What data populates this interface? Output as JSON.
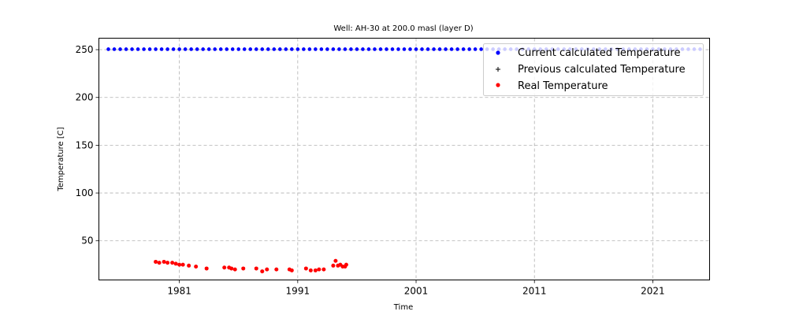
{
  "chart_data": {
    "type": "scatter",
    "title": "Well: AH-30 at 200.0 masl (layer D)",
    "xlabel": "Time",
    "ylabel": "Temperature [C]",
    "xlim": [
      1974.2,
      2025.8
    ],
    "ylim": [
      9,
      262
    ],
    "x_ticks": [
      1981,
      1991,
      2001,
      2011,
      2021
    ],
    "y_ticks": [
      50,
      100,
      150,
      200,
      250
    ],
    "grid": true,
    "legend_position": "top-right",
    "series": [
      {
        "name": "Current calculated Temperature",
        "color": "#0000ff",
        "marker": "dot",
        "x": [
          1975.0,
          1975.5,
          1976.0,
          1976.5,
          1977.0,
          1977.5,
          1978.0,
          1978.5,
          1979.0,
          1979.5,
          1980.0,
          1980.5,
          1981.0,
          1981.5,
          1982.0,
          1982.5,
          1983.0,
          1983.5,
          1984.0,
          1984.5,
          1985.0,
          1985.5,
          1986.0,
          1986.5,
          1987.0,
          1987.5,
          1988.0,
          1988.5,
          1989.0,
          1989.5,
          1990.0,
          1990.5,
          1991.0,
          1991.5,
          1992.0,
          1992.5,
          1993.0,
          1993.5,
          1994.0,
          1994.5,
          1995.0,
          1995.5,
          1996.0,
          1996.5,
          1997.0,
          1997.5,
          1998.0,
          1998.5,
          1999.0,
          1999.5,
          2000.0,
          2000.5,
          2001.0,
          2001.5,
          2002.0,
          2002.5,
          2003.0,
          2003.5,
          2004.0,
          2004.5,
          2005.0,
          2005.5,
          2006.0,
          2006.5,
          2007.0,
          2007.5,
          2008.0,
          2008.5,
          2009.0,
          2009.5,
          2010.0,
          2010.5,
          2011.0,
          2011.5,
          2012.0,
          2012.5,
          2013.0,
          2013.5,
          2014.0,
          2014.5,
          2015.0,
          2015.5,
          2016.0,
          2016.5,
          2017.0,
          2017.5,
          2018.0,
          2018.5,
          2019.0,
          2019.5,
          2020.0,
          2020.5,
          2021.0,
          2021.5,
          2022.0,
          2022.5,
          2023.0,
          2023.5,
          2024.0,
          2024.5,
          2025.0
        ],
        "y_constant": 250.5
      },
      {
        "name": "Previous calculated Temperature",
        "color": "#000000",
        "marker": "plus",
        "x": [],
        "y": []
      },
      {
        "name": "Real Temperature",
        "color": "#ff0000",
        "marker": "dot",
        "x": [
          1979.0,
          1979.3,
          1979.7,
          1980.0,
          1980.4,
          1980.7,
          1981.0,
          1981.3,
          1981.8,
          1982.4,
          1983.3,
          1984.8,
          1985.2,
          1985.4,
          1985.7,
          1986.4,
          1987.5,
          1988.0,
          1988.4,
          1989.2,
          1990.3,
          1990.5,
          1991.7,
          1992.1,
          1992.5,
          1992.8,
          1993.2,
          1994.0,
          1994.2,
          1994.4,
          1994.6,
          1994.8,
          1995.0,
          1995.1
        ],
        "y": [
          28,
          27,
          28,
          27,
          27,
          26,
          25,
          25,
          24,
          23,
          21,
          22,
          22,
          21,
          20,
          21,
          21,
          18,
          20,
          20,
          20,
          19,
          21,
          19,
          19,
          20,
          20,
          24,
          29,
          24,
          25,
          23,
          23,
          25
        ]
      }
    ]
  }
}
